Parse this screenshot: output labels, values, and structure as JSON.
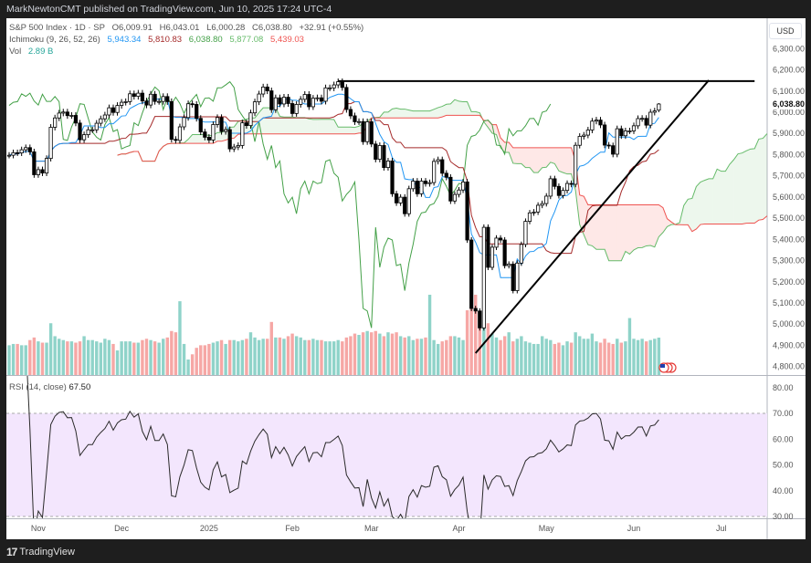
{
  "publish_line": "MarkNewtonCMT published on TradingView.com, Jun 10, 2025 17:24 UTC-4",
  "legend": {
    "symbol": "S&P 500 Index · 1D · SP",
    "open": "O6,009.91",
    "high": "H6,043.01",
    "low": "L6,000.28",
    "close": "C6,038.80",
    "change": "+32.91 (+0.55%)",
    "ichimoku_label": "Ichimoku (9, 26, 52, 26)",
    "ichimoku_values": [
      {
        "value": "5,943.34",
        "color": "#2196f3"
      },
      {
        "value": "5,810.83",
        "color": "#a52a2a"
      },
      {
        "value": "6,038.80",
        "color": "#43a047"
      },
      {
        "value": "5,877.08",
        "color": "#66bb6a"
      },
      {
        "value": "5,439.03",
        "color": "#ef5350"
      }
    ],
    "vol_label": "Vol",
    "vol_value": "2.89 B"
  },
  "rsi_legend": {
    "label": "RSI (14, close)",
    "value": "67.50"
  },
  "currency": "USD",
  "footer_brand": "TradingView",
  "chart_data": {
    "type": "candlestick",
    "interval": "1D",
    "price_axis": {
      "ylim": [
        4760,
        6360
      ],
      "ticks": [
        "6,300.00",
        "6,200.00",
        "6,100.00",
        "6,000.00",
        "5,900.00",
        "5,800.00",
        "5,700.00",
        "5,600.00",
        "5,500.00",
        "5,400.00",
        "5,300.00",
        "5,200.00",
        "5,100.00",
        "5,000.00",
        "4,900.00",
        "4,800.00"
      ],
      "last_price": "6,038.80",
      "last_price_value": 6038.8
    },
    "rsi_axis": {
      "ylim": [
        28.5,
        84
      ],
      "ticks": [
        "80.00",
        "70.00",
        "60.00",
        "50.00",
        "40.00",
        "30.00"
      ],
      "band": [
        30,
        70
      ]
    },
    "time_ticks": [
      {
        "label": "Nov",
        "date": "2024-11-01"
      },
      {
        "label": "Dec",
        "date": "2024-12-02"
      },
      {
        "label": "2025",
        "date": "2025-01-02"
      },
      {
        "label": "Feb",
        "date": "2025-02-03"
      },
      {
        "label": "Mar",
        "date": "2025-03-03"
      },
      {
        "label": "Apr",
        "date": "2025-04-01"
      },
      {
        "label": "May",
        "date": "2025-05-01"
      },
      {
        "label": "Jun",
        "date": "2025-06-02"
      },
      {
        "label": "Jul",
        "date": "2025-07-01"
      }
    ],
    "last_bar_ohlc": {
      "open": 6009.91,
      "high": 6043.01,
      "low": 6000.28,
      "close": 6038.8
    },
    "candles_close": [
      [
        "2024-10-23",
        5797
      ],
      [
        "2024-10-24",
        5809
      ],
      [
        "2024-10-25",
        5808
      ],
      [
        "2024-10-28",
        5823
      ],
      [
        "2024-10-29",
        5833
      ],
      [
        "2024-10-30",
        5813
      ],
      [
        "2024-10-31",
        5705
      ],
      [
        "2024-11-01",
        5729
      ],
      [
        "2024-11-04",
        5713
      ],
      [
        "2024-11-05",
        5782
      ],
      [
        "2024-11-06",
        5929
      ],
      [
        "2024-11-07",
        5973
      ],
      [
        "2024-11-08",
        5996
      ],
      [
        "2024-11-11",
        6001
      ],
      [
        "2024-11-12",
        5984
      ],
      [
        "2024-11-13",
        5985
      ],
      [
        "2024-11-14",
        5949
      ],
      [
        "2024-11-15",
        5870
      ],
      [
        "2024-11-18",
        5894
      ],
      [
        "2024-11-19",
        5917
      ],
      [
        "2024-11-20",
        5917
      ],
      [
        "2024-11-21",
        5948
      ],
      [
        "2024-11-22",
        5969
      ],
      [
        "2024-11-25",
        5987
      ],
      [
        "2024-11-26",
        6021
      ],
      [
        "2024-11-27",
        5999
      ],
      [
        "2024-11-29",
        6032
      ],
      [
        "2024-12-02",
        6047
      ],
      [
        "2024-12-03",
        6050
      ],
      [
        "2024-12-04",
        6087
      ],
      [
        "2024-12-05",
        6075
      ],
      [
        "2024-12-06",
        6090
      ],
      [
        "2024-12-09",
        6053
      ],
      [
        "2024-12-10",
        6034
      ],
      [
        "2024-12-11",
        6085
      ],
      [
        "2024-12-12",
        6051
      ],
      [
        "2024-12-13",
        6051
      ],
      [
        "2024-12-16",
        6074
      ],
      [
        "2024-12-17",
        6050
      ],
      [
        "2024-12-18",
        5872
      ],
      [
        "2024-12-19",
        5867
      ],
      [
        "2024-12-20",
        5931
      ],
      [
        "2024-12-23",
        5975
      ],
      [
        "2024-12-24",
        6040
      ],
      [
        "2024-12-26",
        6037
      ],
      [
        "2024-12-27",
        5971
      ],
      [
        "2024-12-30",
        5907
      ],
      [
        "2024-12-31",
        5882
      ],
      [
        "2025-01-02",
        5869
      ],
      [
        "2025-01-03",
        5942
      ],
      [
        "2025-01-06",
        5975
      ],
      [
        "2025-01-07",
        5909
      ],
      [
        "2025-01-08",
        5918
      ],
      [
        "2025-01-10",
        5827
      ],
      [
        "2025-01-13",
        5836
      ],
      [
        "2025-01-14",
        5843
      ],
      [
        "2025-01-15",
        5950
      ],
      [
        "2025-01-16",
        5937
      ],
      [
        "2025-01-17",
        5997
      ],
      [
        "2025-01-21",
        6049
      ],
      [
        "2025-01-22",
        6086
      ],
      [
        "2025-01-23",
        6119
      ],
      [
        "2025-01-24",
        6101
      ],
      [
        "2025-01-27",
        6012
      ],
      [
        "2025-01-28",
        6068
      ],
      [
        "2025-01-29",
        6039
      ],
      [
        "2025-01-30",
        6071
      ],
      [
        "2025-01-31",
        6041
      ],
      [
        "2025-02-03",
        5994
      ],
      [
        "2025-02-04",
        6037
      ],
      [
        "2025-02-05",
        6061
      ],
      [
        "2025-02-06",
        6084
      ],
      [
        "2025-02-07",
        6026
      ],
      [
        "2025-02-10",
        6066
      ],
      [
        "2025-02-11",
        6068
      ],
      [
        "2025-02-12",
        6052
      ],
      [
        "2025-02-13",
        6115
      ],
      [
        "2025-02-14",
        6115
      ],
      [
        "2025-02-18",
        6129
      ],
      [
        "2025-02-19",
        6144
      ],
      [
        "2025-02-20",
        6117
      ],
      [
        "2025-02-21",
        6013
      ],
      [
        "2025-02-24",
        5983
      ],
      [
        "2025-02-25",
        5955
      ],
      [
        "2025-02-26",
        5956
      ],
      [
        "2025-02-27",
        5861
      ],
      [
        "2025-02-28",
        5955
      ],
      [
        "2025-03-03",
        5850
      ],
      [
        "2025-03-04",
        5778
      ],
      [
        "2025-03-05",
        5843
      ],
      [
        "2025-03-06",
        5739
      ],
      [
        "2025-03-07",
        5770
      ],
      [
        "2025-03-10",
        5615
      ],
      [
        "2025-03-11",
        5572
      ],
      [
        "2025-03-12",
        5599
      ],
      [
        "2025-03-13",
        5521
      ],
      [
        "2025-03-14",
        5639
      ],
      [
        "2025-03-17",
        5675
      ],
      [
        "2025-03-18",
        5615
      ],
      [
        "2025-03-19",
        5675
      ],
      [
        "2025-03-20",
        5663
      ],
      [
        "2025-03-21",
        5668
      ],
      [
        "2025-03-24",
        5768
      ],
      [
        "2025-03-25",
        5776
      ],
      [
        "2025-03-26",
        5712
      ],
      [
        "2025-03-27",
        5693
      ],
      [
        "2025-03-28",
        5581
      ],
      [
        "2025-03-31",
        5612
      ],
      [
        "2025-04-01",
        5633
      ],
      [
        "2025-04-02",
        5671
      ],
      [
        "2025-04-03",
        5397
      ],
      [
        "2025-04-04",
        5074
      ],
      [
        "2025-04-07",
        5062
      ],
      [
        "2025-04-08",
        4982
      ],
      [
        "2025-04-09",
        5457
      ],
      [
        "2025-04-10",
        5268
      ],
      [
        "2025-04-11",
        5363
      ],
      [
        "2025-04-14",
        5406
      ],
      [
        "2025-04-15",
        5397
      ],
      [
        "2025-04-16",
        5276
      ],
      [
        "2025-04-17",
        5283
      ],
      [
        "2025-04-21",
        5158
      ],
      [
        "2025-04-22",
        5288
      ],
      [
        "2025-04-23",
        5376
      ],
      [
        "2025-04-24",
        5485
      ],
      [
        "2025-04-25",
        5525
      ],
      [
        "2025-04-28",
        5529
      ],
      [
        "2025-04-29",
        5561
      ],
      [
        "2025-04-30",
        5569
      ],
      [
        "2025-05-01",
        5604
      ],
      [
        "2025-05-02",
        5686
      ],
      [
        "2025-05-05",
        5650
      ],
      [
        "2025-05-06",
        5607
      ],
      [
        "2025-05-07",
        5631
      ],
      [
        "2025-05-08",
        5664
      ],
      [
        "2025-05-09",
        5660
      ],
      [
        "2025-05-12",
        5844
      ],
      [
        "2025-05-13",
        5886
      ],
      [
        "2025-05-14",
        5892
      ],
      [
        "2025-05-15",
        5916
      ],
      [
        "2025-05-16",
        5958
      ],
      [
        "2025-05-19",
        5963
      ],
      [
        "2025-05-20",
        5940
      ],
      [
        "2025-05-21",
        5845
      ],
      [
        "2025-05-22",
        5842
      ],
      [
        "2025-05-23",
        5802
      ],
      [
        "2025-05-27",
        5922
      ],
      [
        "2025-05-28",
        5889
      ],
      [
        "2025-05-29",
        5912
      ],
      [
        "2025-05-30",
        5912
      ],
      [
        "2025-06-02",
        5936
      ],
      [
        "2025-06-03",
        5970
      ],
      [
        "2025-06-04",
        5971
      ],
      [
        "2025-06-05",
        5939
      ],
      [
        "2025-06-06",
        6000
      ],
      [
        "2025-06-09",
        6006
      ],
      [
        "2025-06-10",
        6038.8
      ]
    ],
    "volume_billions": [
      2.3,
      2.4,
      2.4,
      2.3,
      2.3,
      2.7,
      2.9,
      2.6,
      2.5,
      2.5,
      4.0,
      3.0,
      2.8,
      2.7,
      2.6,
      2.6,
      2.5,
      2.6,
      3.0,
      2.7,
      2.7,
      2.6,
      2.5,
      2.8,
      2.7,
      2.4,
      1.9,
      2.6,
      2.6,
      2.6,
      2.5,
      2.5,
      2.7,
      2.8,
      2.7,
      2.6,
      2.5,
      2.8,
      2.9,
      3.4,
      3.3,
      5.7,
      2.4,
      1.2,
      1.6,
      2.1,
      2.3,
      2.3,
      2.4,
      2.5,
      2.6,
      2.7,
      2.4,
      2.7,
      2.7,
      2.6,
      2.7,
      2.8,
      3.3,
      2.9,
      2.7,
      2.8,
      2.8,
      4.1,
      2.9,
      2.9,
      2.8,
      3.0,
      3.2,
      3.0,
      2.9,
      2.7,
      2.7,
      2.8,
      2.7,
      2.7,
      2.6,
      2.6,
      2.6,
      2.7,
      2.6,
      2.9,
      3.0,
      3.2,
      3.1,
      3.3,
      3.4,
      3.3,
      3.4,
      3.2,
      3.0,
      3.3,
      3.2,
      3.3,
      3.0,
      2.9,
      3.0,
      2.7,
      2.8,
      2.8,
      2.9,
      6.2,
      2.7,
      2.4,
      2.6,
      2.7,
      3.0,
      3.0,
      2.9,
      2.7,
      5.0,
      5.8,
      6.2,
      4.5,
      5.5,
      4.0,
      3.2,
      2.9,
      2.7,
      3.0,
      3.3,
      2.6,
      2.8,
      3.0,
      2.6,
      2.5,
      2.4,
      2.4,
      3.0,
      2.8,
      2.7,
      2.4,
      2.5,
      2.3,
      2.6,
      2.5,
      3.3,
      3.0,
      2.8,
      2.8,
      3.2,
      2.6,
      2.5,
      2.8,
      2.5,
      2.4,
      2.8,
      2.5,
      2.6,
      4.4,
      2.8,
      2.7,
      2.8,
      2.6,
      2.7,
      2.8,
      2.89
    ],
    "indicators": {
      "ichimoku": {
        "conversion": 9,
        "base": 26,
        "span_b": 52,
        "displacement": 26
      },
      "rsi": {
        "length": 14,
        "source": "close"
      }
    },
    "drawings": [
      {
        "type": "horizontal-resistance",
        "from": "2025-02-19",
        "to": "2025-07-11",
        "price": 6147
      },
      {
        "type": "rising-trendline",
        "from": "2025-04-07",
        "from_price": 4863,
        "to": "2025-06-26",
        "to_price": 6151
      }
    ],
    "colors": {
      "up_volume": "#8fd3c9",
      "down_volume": "#f6a7a5",
      "tenkan": "#2196f3",
      "kijun": "#a52a2a",
      "chikou": "#43a047",
      "span_a": "#66bb6a",
      "span_b": "#ef5350",
      "rsi_line": "#2a2a2a",
      "rsi_band": "#f3e6fd"
    }
  }
}
